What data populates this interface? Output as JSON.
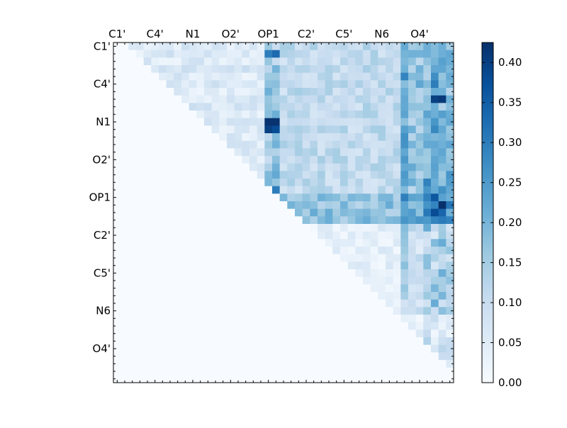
{
  "chart_data": {
    "type": "heatmap",
    "title": "",
    "xlabel": "",
    "ylabel": "",
    "n_rows": 45,
    "n_cols": 45,
    "x_tick_labels": [
      "C1'",
      "C4'",
      "N1",
      "O2'",
      "OP1",
      "C2'",
      "C5'",
      "N6",
      "O4'"
    ],
    "y_tick_labels": [
      "C1'",
      "C4'",
      "N1",
      "O2'",
      "OP1",
      "C2'",
      "C5'",
      "N6",
      "O4'"
    ],
    "tick_label_indices": [
      0,
      5,
      10,
      15,
      20,
      25,
      30,
      35,
      40
    ],
    "colorbar": {
      "colormap": "Blues",
      "range": [
        0.0,
        0.425
      ],
      "ticks": [
        "0.00",
        "0.05",
        "0.10",
        "0.15",
        "0.20",
        "0.25",
        "0.30",
        "0.35",
        "0.40"
      ],
      "tick_values": [
        0.0,
        0.05,
        0.1,
        0.15,
        0.2,
        0.25,
        0.3,
        0.35,
        0.4
      ]
    },
    "matrix_shape": "upper-triangular",
    "notable_cells": [
      {
        "row": 1,
        "col": 21,
        "value": 0.33
      },
      {
        "row": 1,
        "col": 20,
        "value": 0.3
      },
      {
        "row": 5,
        "col": 42,
        "value": 0.3
      },
      {
        "row": 7,
        "col": 42,
        "value": 0.4
      },
      {
        "row": 7,
        "col": 43,
        "value": 0.41
      },
      {
        "row": 10,
        "col": 20,
        "value": 0.42
      },
      {
        "row": 10,
        "col": 21,
        "value": 0.42
      },
      {
        "row": 11,
        "col": 20,
        "value": 0.4
      },
      {
        "row": 11,
        "col": 21,
        "value": 0.38
      },
      {
        "row": 19,
        "col": 21,
        "value": 0.3
      },
      {
        "row": 20,
        "col": 42,
        "value": 0.36
      },
      {
        "row": 21,
        "col": 43,
        "value": 0.43
      },
      {
        "row": 22,
        "col": 42,
        "value": 0.38
      }
    ]
  }
}
